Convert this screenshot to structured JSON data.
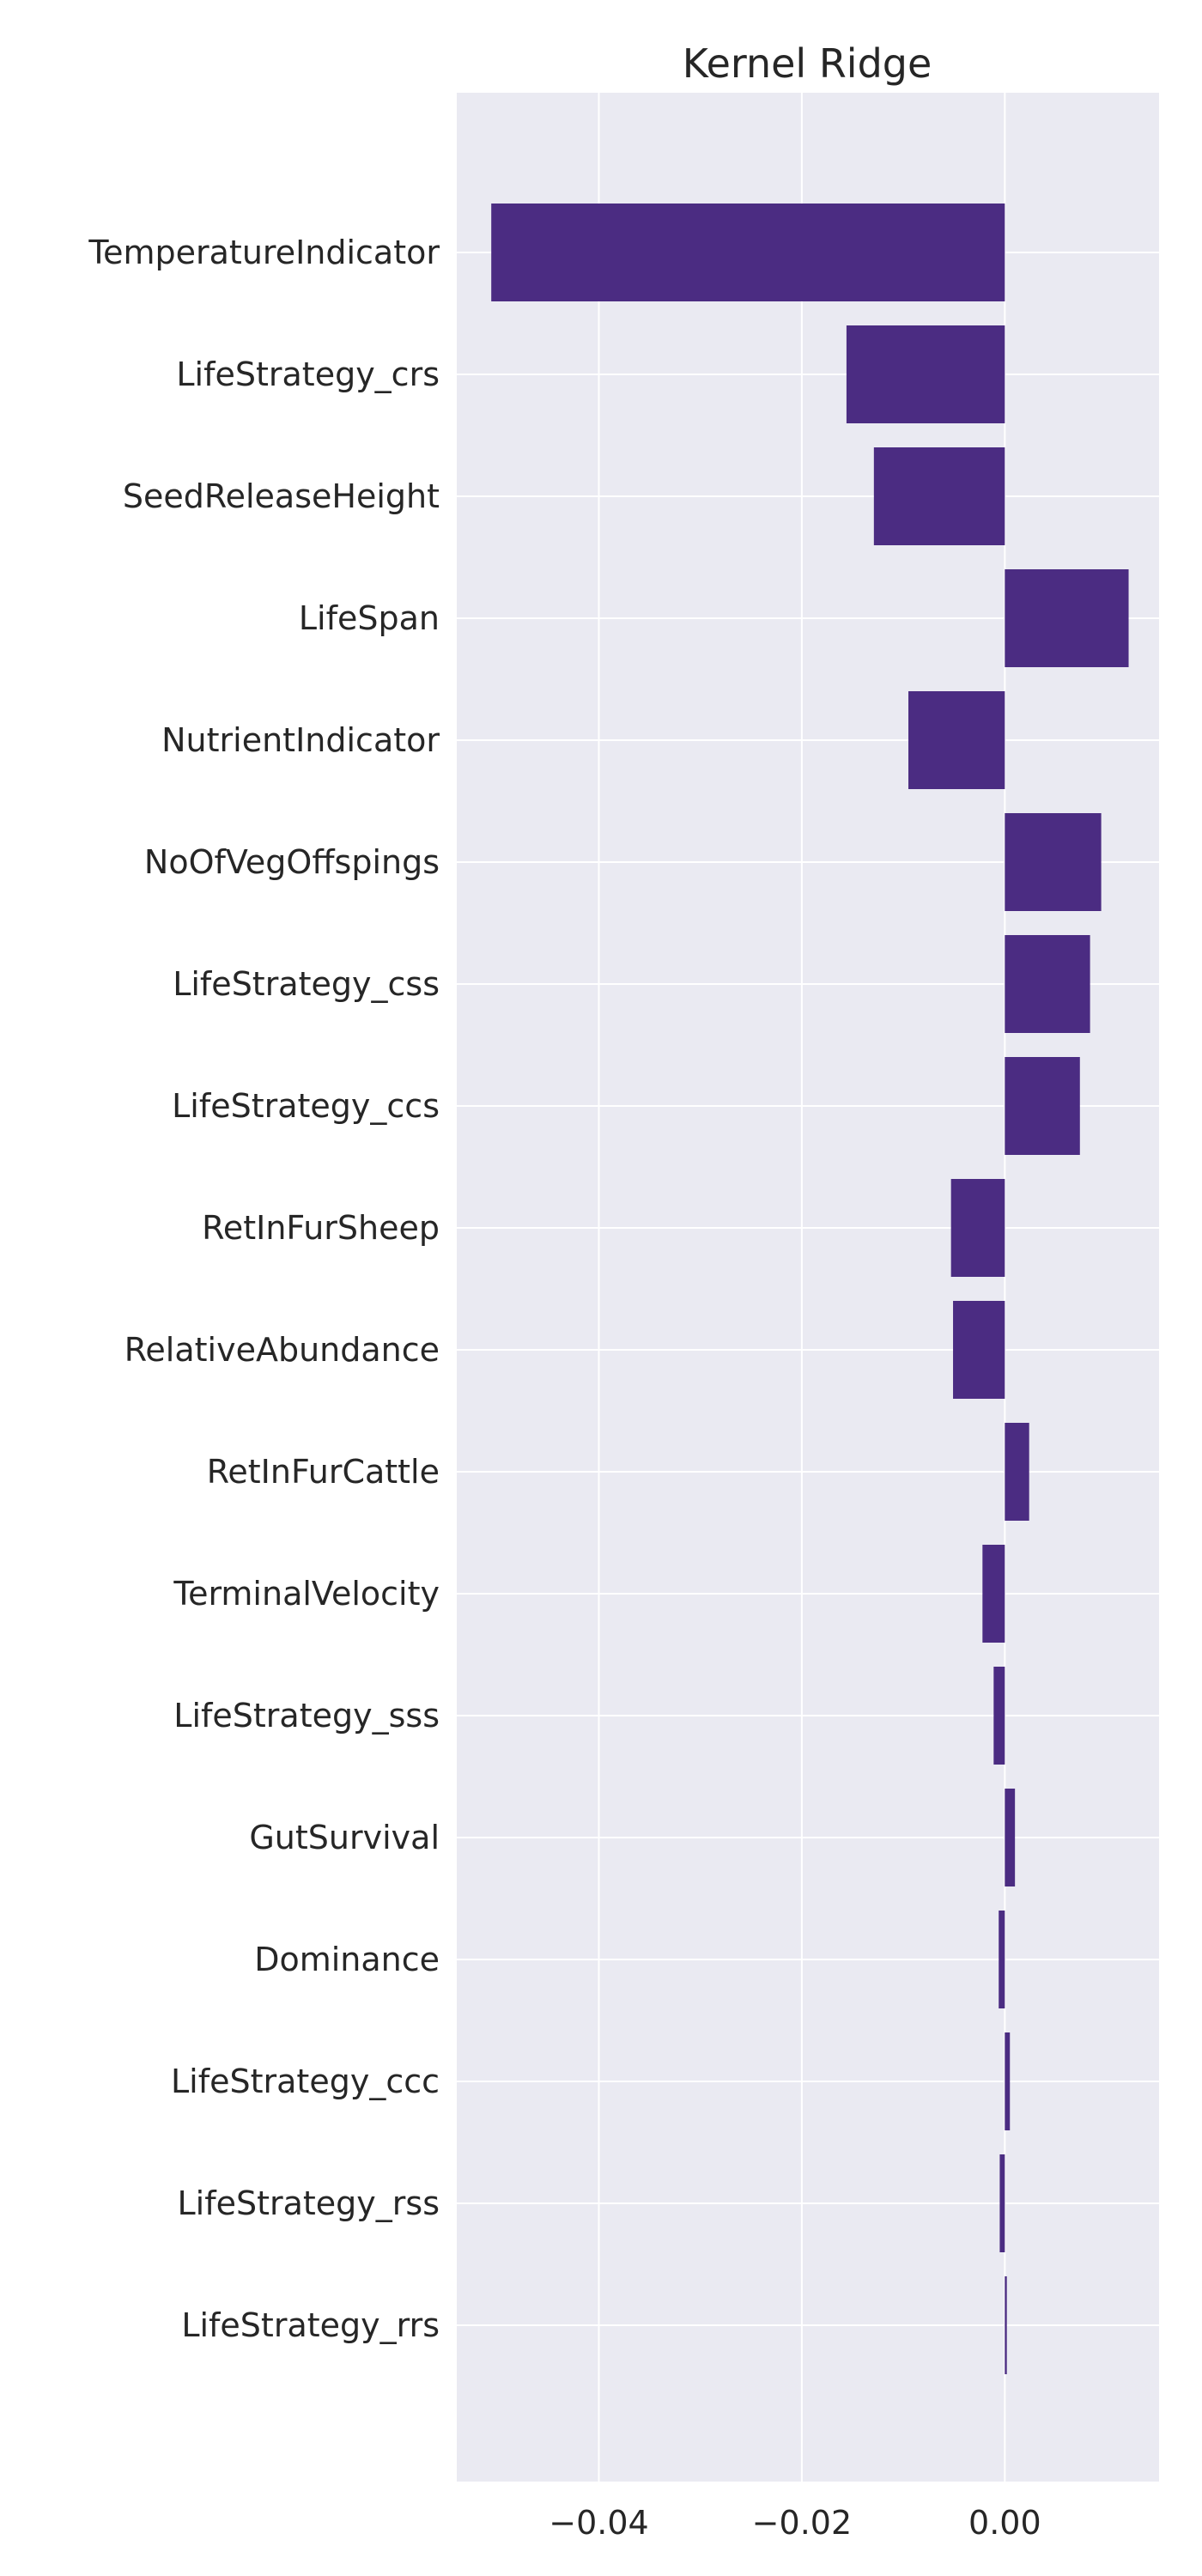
{
  "chart_data": {
    "type": "bar",
    "orientation": "horizontal",
    "title": "Kernel Ridge",
    "xlabel": "",
    "ylabel": "",
    "categories": [
      "TemperatureIndicator",
      "LifeStrategy_crs",
      "SeedReleaseHeight",
      "LifeSpan",
      "NutrientIndicator",
      "NoOfVegOffspings",
      "LifeStrategy_css",
      "LifeStrategy_ccs",
      "RetInFurSheep",
      "RelativeAbundance",
      "RetInFurCattle",
      "TerminalVelocity",
      "LifeStrategy_sss",
      "GutSurvival",
      "Dominance",
      "LifeStrategy_ccc",
      "LifeStrategy_rss",
      "LifeStrategy_rrs"
    ],
    "values": [
      -0.0506,
      -0.0156,
      -0.0129,
      0.0122,
      -0.0095,
      0.0095,
      0.0084,
      0.0074,
      -0.0053,
      -0.0051,
      0.0024,
      -0.0022,
      -0.0011,
      0.001,
      -0.0006,
      0.0005,
      -0.0005,
      0.0002
    ],
    "xlim": [
      -0.054,
      0.0152
    ],
    "xticks": [
      -0.04,
      -0.02,
      0.0
    ],
    "xtick_labels": [
      "−0.04",
      "−0.02",
      "0.00"
    ],
    "grid": true,
    "bar_color": "#4b2c82",
    "background_color": "#eaeaf2",
    "grid_color": "#ffffff"
  }
}
